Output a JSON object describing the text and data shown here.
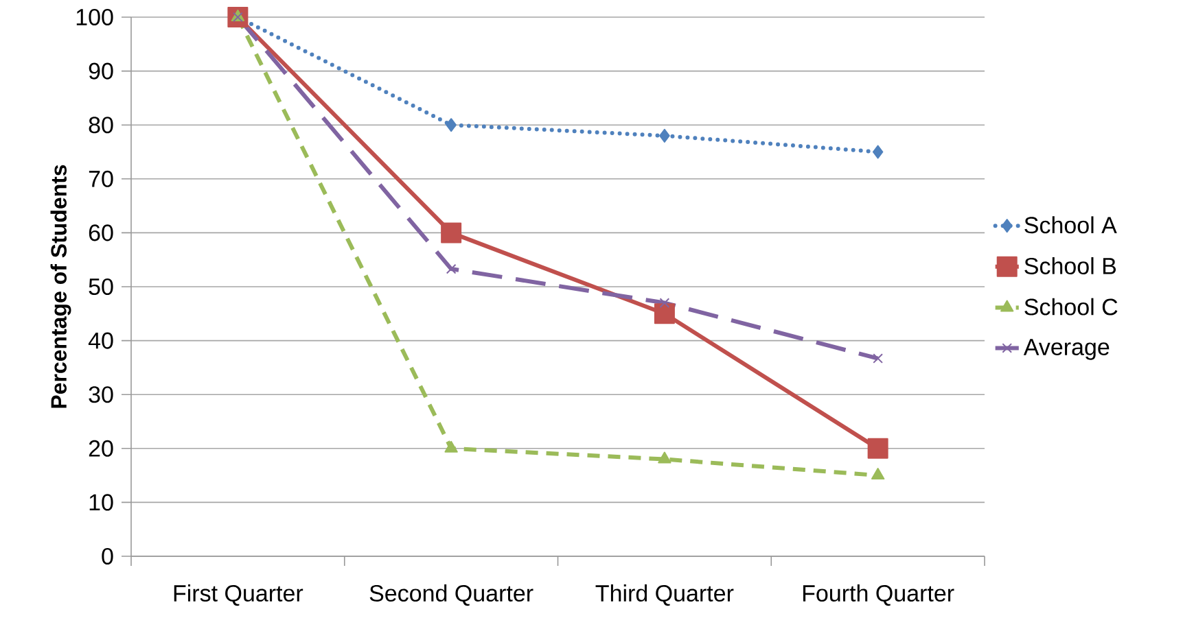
{
  "chart_data": {
    "type": "line",
    "ylabel": "Percentage of Students",
    "categories": [
      "First Quarter",
      "Second Quarter",
      "Third Quarter",
      "Fourth Quarter"
    ],
    "series": [
      {
        "name": "School A",
        "color": "#4f81bd",
        "values": [
          100,
          80,
          78,
          75
        ],
        "marker": "diamond",
        "line_style": "dotted"
      },
      {
        "name": "School B",
        "color": "#c0504d",
        "values": [
          100,
          60,
          45,
          20
        ],
        "marker": "square",
        "line_style": "solid"
      },
      {
        "name": "School C",
        "color": "#9bbb59",
        "values": [
          100,
          20,
          18,
          15
        ],
        "marker": "triangle",
        "line_style": "dashed"
      },
      {
        "name": "Average",
        "color": "#8064a2",
        "values": [
          100,
          53.3,
          47,
          36.7
        ],
        "marker": "cross",
        "line_style": "longdashed"
      }
    ],
    "ylim": [
      0,
      100
    ],
    "yticks": [
      0,
      10,
      20,
      30,
      40,
      50,
      60,
      70,
      80,
      90,
      100
    ],
    "grid": "y",
    "legend": "right"
  }
}
